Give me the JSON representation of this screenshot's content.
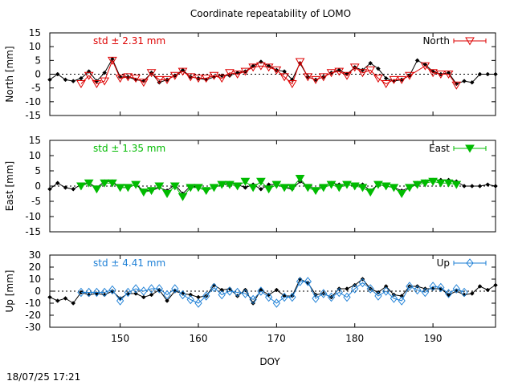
{
  "title": "Coordinate repeatability of LOMO",
  "timestamp": "18/07/25 17:21",
  "xlabel": "DOY",
  "chart_data": [
    {
      "type": "line",
      "ylabel": "North [mm]",
      "std_label": "std ± 2.31 mm",
      "legend": "North",
      "legend_position": "top-right",
      "color": "#dd0000",
      "marker": "triangle-down-open",
      "ylim": [
        -15,
        15
      ],
      "yticks": [
        -15,
        -10,
        -5,
        0,
        5,
        10,
        15
      ],
      "xlim": [
        141,
        198
      ],
      "xticks": [
        150,
        160,
        170,
        180,
        190
      ],
      "series": [
        {
          "role": "reference",
          "x": [
            141,
            142,
            143,
            144,
            145,
            146,
            147,
            148,
            149,
            150,
            151,
            152,
            153,
            154,
            155,
            156,
            157,
            158,
            159,
            160,
            161,
            162,
            163,
            164,
            165,
            166,
            167,
            168,
            169,
            170,
            171,
            172,
            173,
            174,
            175,
            176,
            177,
            178,
            179,
            180,
            181,
            182,
            183,
            184,
            185,
            186,
            187,
            188,
            189,
            190,
            191,
            192,
            193,
            194,
            195,
            196,
            197,
            198
          ],
          "y": [
            -2.0,
            0.0,
            -2.0,
            -2.5,
            -1.5,
            1.0,
            -2.5,
            0.5,
            5.5,
            -1.0,
            -1.0,
            -2.0,
            -2.5,
            0.5,
            -3.0,
            -2.0,
            -0.5,
            1.5,
            -1.0,
            -1.5,
            -2.0,
            -1.0,
            -0.5,
            -0.5,
            0.5,
            1.0,
            3.0,
            4.5,
            3.0,
            1.5,
            1.0,
            -2.0,
            4.0,
            -1.0,
            -2.0,
            -1.0,
            0.5,
            1.5,
            0.0,
            2.5,
            1.5,
            4.0,
            2.0,
            -1.5,
            -2.5,
            -2.0,
            -0.5,
            5.0,
            3.5,
            1.0,
            0.0,
            0.5,
            -3.5,
            -2.5,
            -3.0,
            0.0,
            0.0,
            0.0
          ]
        },
        {
          "role": "measured",
          "x": [
            145,
            146,
            147,
            148,
            149,
            150,
            151,
            152,
            153,
            154,
            155,
            156,
            157,
            158,
            159,
            160,
            161,
            162,
            163,
            164,
            165,
            166,
            167,
            168,
            169,
            170,
            171,
            172,
            173,
            174,
            175,
            176,
            177,
            178,
            179,
            180,
            181,
            182,
            183,
            184,
            185,
            186,
            187,
            189,
            190,
            191,
            192,
            193
          ],
          "y": [
            -3.5,
            -0.5,
            -3.5,
            -2.5,
            5.0,
            -1.5,
            -1.0,
            -1.5,
            -3.0,
            0.5,
            -2.0,
            -2.0,
            -0.5,
            1.0,
            -1.0,
            -1.5,
            -1.5,
            -0.5,
            -1.5,
            0.5,
            0.0,
            1.0,
            2.5,
            3.0,
            2.5,
            1.5,
            -1.0,
            -3.5,
            4.5,
            -1.0,
            -2.0,
            -1.0,
            0.5,
            1.0,
            -0.5,
            2.5,
            0.5,
            1.5,
            -1.5,
            -3.5,
            -2.0,
            -2.0,
            -0.5,
            3.0,
            0.5,
            0.0,
            0.0,
            -4.0
          ]
        }
      ]
    },
    {
      "type": "line",
      "ylabel": "East [mm]",
      "std_label": "std ± 1.35 mm",
      "legend": "East",
      "legend_position": "top-right",
      "color": "#00bb00",
      "marker": "triangle-down-filled",
      "ylim": [
        -15,
        15
      ],
      "yticks": [
        -15,
        -10,
        -5,
        0,
        5,
        10,
        15
      ],
      "xlim": [
        141,
        198
      ],
      "xticks": [
        150,
        160,
        170,
        180,
        190
      ],
      "series": [
        {
          "role": "reference",
          "x": [
            141,
            142,
            143,
            144,
            145,
            146,
            147,
            148,
            149,
            150,
            151,
            152,
            153,
            154,
            155,
            156,
            157,
            158,
            159,
            160,
            161,
            162,
            163,
            164,
            165,
            166,
            167,
            168,
            169,
            170,
            171,
            172,
            173,
            174,
            175,
            176,
            177,
            178,
            179,
            180,
            181,
            182,
            183,
            184,
            185,
            186,
            187,
            188,
            189,
            190,
            191,
            192,
            193,
            194,
            195,
            196,
            197,
            198
          ],
          "y": [
            -1.0,
            1.0,
            -0.5,
            -1.0,
            0.5,
            1.0,
            -0.5,
            1.5,
            1.5,
            -0.5,
            -0.5,
            0.5,
            -1.5,
            -1.5,
            -0.5,
            -1.5,
            0.5,
            -2.5,
            0.0,
            -0.5,
            -1.5,
            -0.5,
            0.5,
            1.0,
            0.5,
            -0.5,
            0.5,
            -1.0,
            0.5,
            0.5,
            -0.5,
            -1.0,
            1.5,
            0.0,
            -1.0,
            0.0,
            1.0,
            0.5,
            0.5,
            0.0,
            0.5,
            -1.5,
            0.5,
            0.0,
            -0.5,
            -1.5,
            -0.5,
            1.0,
            1.5,
            2.0,
            2.0,
            2.0,
            1.5,
            0.0,
            0.0,
            0.0,
            0.5,
            0.0
          ]
        },
        {
          "role": "measured",
          "x": [
            145,
            146,
            147,
            148,
            149,
            150,
            151,
            152,
            153,
            154,
            155,
            156,
            157,
            158,
            159,
            160,
            161,
            162,
            163,
            164,
            165,
            166,
            167,
            168,
            169,
            170,
            171,
            172,
            173,
            174,
            175,
            176,
            177,
            178,
            179,
            180,
            181,
            182,
            183,
            184,
            185,
            186,
            187,
            188,
            189,
            190,
            191,
            192,
            193
          ],
          "y": [
            0.0,
            1.0,
            -1.0,
            1.0,
            1.0,
            -0.5,
            -0.5,
            0.5,
            -2.0,
            -1.5,
            0.0,
            -2.5,
            0.0,
            -3.5,
            -0.5,
            -0.5,
            -1.5,
            -0.5,
            0.5,
            0.5,
            0.0,
            1.5,
            -0.5,
            1.5,
            -1.0,
            0.5,
            -0.5,
            -0.5,
            2.5,
            -0.5,
            -1.5,
            -0.5,
            0.5,
            -0.5,
            0.5,
            0.0,
            -0.5,
            -2.0,
            0.5,
            0.0,
            -0.5,
            -2.5,
            -0.5,
            0.5,
            1.0,
            1.5,
            1.0,
            1.0,
            0.5
          ]
        }
      ]
    },
    {
      "type": "line",
      "ylabel": "Up [mm]",
      "std_label": "std ± 4.41 mm",
      "legend": "Up",
      "legend_position": "top-right",
      "color": "#1c7fd6",
      "marker": "diamond-open",
      "ylim": [
        -30,
        30
      ],
      "yticks": [
        -30,
        -20,
        -10,
        0,
        10,
        20,
        30
      ],
      "xlim": [
        141,
        198
      ],
      "xticks": [
        150,
        160,
        170,
        180,
        190
      ],
      "series": [
        {
          "role": "reference",
          "x": [
            141,
            142,
            143,
            144,
            145,
            146,
            147,
            148,
            149,
            150,
            151,
            152,
            153,
            154,
            155,
            156,
            157,
            158,
            159,
            160,
            161,
            162,
            163,
            164,
            165,
            166,
            167,
            168,
            169,
            170,
            171,
            172,
            173,
            174,
            175,
            176,
            177,
            178,
            179,
            180,
            181,
            182,
            183,
            184,
            185,
            186,
            187,
            188,
            189,
            190,
            191,
            192,
            193,
            194,
            195,
            196,
            197,
            198
          ],
          "y": [
            -5,
            -8,
            -6,
            -10,
            -1,
            -3,
            -2,
            -3,
            0,
            -6,
            -2,
            -2,
            -5,
            -3,
            1,
            -8,
            0,
            -2,
            -3,
            -5,
            -4,
            5,
            1,
            2,
            -4,
            1,
            -10,
            1,
            -3,
            1,
            -4,
            -4,
            10,
            7,
            -3,
            -2,
            -5,
            2,
            2,
            5,
            10,
            2,
            -1,
            4,
            -3,
            -4,
            4,
            4,
            2,
            2,
            2,
            -3,
            0,
            -3,
            -2,
            4,
            1,
            5
          ]
        },
        {
          "role": "measured",
          "x": [
            145,
            146,
            147,
            148,
            149,
            150,
            151,
            152,
            153,
            154,
            155,
            156,
            157,
            158,
            159,
            160,
            161,
            162,
            163,
            164,
            165,
            166,
            167,
            168,
            169,
            170,
            171,
            172,
            173,
            174,
            175,
            176,
            177,
            178,
            179,
            180,
            181,
            182,
            183,
            184,
            185,
            186,
            187,
            188,
            189,
            190,
            191,
            192,
            193,
            194
          ],
          "y": [
            -1,
            -1,
            -1,
            -1,
            1,
            -8,
            -1,
            2,
            0,
            2,
            2,
            -3,
            2,
            -3,
            -7,
            -10,
            -4,
            3,
            -3,
            0,
            -1,
            -2,
            -7,
            0,
            -5,
            -10,
            -5,
            -5,
            8,
            8,
            -6,
            -2,
            -5,
            -1,
            -5,
            2,
            7,
            2,
            -4,
            0,
            -6,
            -8,
            4,
            1,
            -1,
            4,
            3,
            -2,
            2,
            -1
          ]
        }
      ]
    }
  ]
}
